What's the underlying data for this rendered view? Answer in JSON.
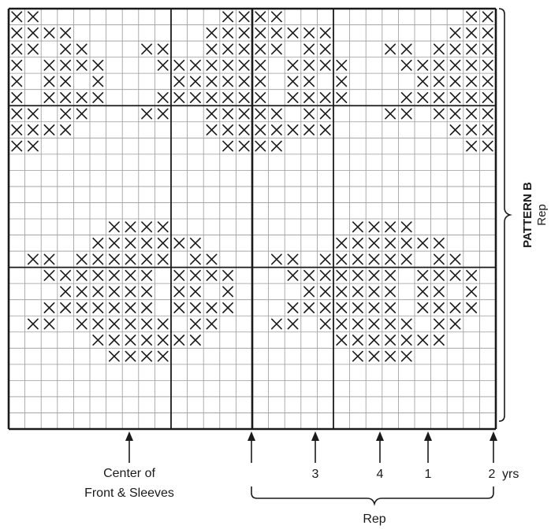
{
  "chart_data": {
    "type": "knitting-chart",
    "columns": 30,
    "rows": 26,
    "x_marks": [
      [
        0,
        1,
        2,
        3,
        4,
        5,
        6,
        7,
        8,
        9,
        10,
        11,
        12,
        13,
        14,
        15,
        16,
        17,
        18,
        19,
        20,
        21,
        22,
        23,
        24,
        25,
        26,
        27,
        28,
        29
      ],
      [
        0,
        1,
        2,
        3,
        4,
        5,
        6,
        7,
        8,
        9,
        10,
        11,
        12,
        13,
        14,
        15,
        16,
        17,
        18,
        19,
        20,
        21,
        22,
        23,
        24,
        25,
        26,
        27,
        28,
        29
      ]
    ],
    "grid_rows": [
      "XX.........XXXX.........XX",
      "XXXX......XXXXXXX......XXX",
      "XX.XX...XX.XXXXX.XX...XX.XXX",
      "X.XXXX....XXXXXX.XXXX...XXXXX",
      "X.XX.X....XXXXXX.XX.X...XXXXX",
      "X.XXXX...XXXXXXX.XXXX..XXXXXX",
      "XX.XX...XX.XXXXX.XX...XX.XXX",
      "XXXX......XXXXXXX......XXX",
      "XX.........XXXX.........XX"
    ],
    "pattern_rows": [
      "XX............XXXX............XX",
      "XXXX........XXXXXXXX........XXX",
      "XX.XX....XX..XXXXXX.XX....XX..XXX"
    ],
    "stitches": [
      [
        0,
        0
      ],
      [
        1,
        0
      ],
      [
        13,
        0
      ],
      [
        14,
        0
      ],
      [
        15,
        0
      ],
      [
        16,
        0
      ],
      [
        28,
        0
      ],
      [
        29,
        0
      ],
      [
        0,
        1
      ],
      [
        1,
        1
      ],
      [
        2,
        1
      ],
      [
        3,
        1
      ],
      [
        12,
        1
      ],
      [
        13,
        1
      ],
      [
        14,
        1
      ],
      [
        15,
        1
      ],
      [
        16,
        1
      ],
      [
        17,
        1
      ],
      [
        18,
        1
      ],
      [
        19,
        1
      ],
      [
        27,
        1
      ],
      [
        28,
        1
      ],
      [
        29,
        1
      ],
      [
        0,
        2
      ],
      [
        1,
        2
      ],
      [
        3,
        2
      ],
      [
        4,
        2
      ],
      [
        8,
        2
      ],
      [
        9,
        2
      ],
      [
        12,
        2
      ],
      [
        13,
        2
      ],
      [
        14,
        2
      ],
      [
        15,
        2
      ],
      [
        16,
        2
      ],
      [
        18,
        2
      ],
      [
        19,
        2
      ],
      [
        23,
        2
      ],
      [
        24,
        2
      ],
      [
        26,
        2
      ],
      [
        27,
        2
      ],
      [
        28,
        2
      ],
      [
        29,
        2
      ],
      [
        0,
        3
      ],
      [
        2,
        3
      ],
      [
        3,
        3
      ],
      [
        4,
        3
      ],
      [
        5,
        3
      ],
      [
        9,
        3
      ],
      [
        10,
        3
      ],
      [
        11,
        3
      ],
      [
        12,
        3
      ],
      [
        13,
        3
      ],
      [
        14,
        3
      ],
      [
        15,
        3
      ],
      [
        17,
        3
      ],
      [
        18,
        3
      ],
      [
        19,
        3
      ],
      [
        20,
        3
      ],
      [
        24,
        3
      ],
      [
        25,
        3
      ],
      [
        26,
        3
      ],
      [
        27,
        3
      ],
      [
        28,
        3
      ],
      [
        29,
        3
      ],
      [
        0,
        4
      ],
      [
        2,
        4
      ],
      [
        3,
        4
      ],
      [
        5,
        4
      ],
      [
        10,
        4
      ],
      [
        11,
        4
      ],
      [
        12,
        4
      ],
      [
        13,
        4
      ],
      [
        14,
        4
      ],
      [
        15,
        4
      ],
      [
        17,
        4
      ],
      [
        18,
        4
      ],
      [
        20,
        4
      ],
      [
        25,
        4
      ],
      [
        26,
        4
      ],
      [
        27,
        4
      ],
      [
        28,
        4
      ],
      [
        29,
        4
      ],
      [
        0,
        5
      ],
      [
        2,
        5
      ],
      [
        3,
        5
      ],
      [
        4,
        5
      ],
      [
        5,
        5
      ],
      [
        9,
        5
      ],
      [
        10,
        5
      ],
      [
        11,
        5
      ],
      [
        12,
        5
      ],
      [
        13,
        5
      ],
      [
        14,
        5
      ],
      [
        15,
        5
      ],
      [
        17,
        5
      ],
      [
        18,
        5
      ],
      [
        19,
        5
      ],
      [
        20,
        5
      ],
      [
        24,
        5
      ],
      [
        25,
        5
      ],
      [
        26,
        5
      ],
      [
        27,
        5
      ],
      [
        28,
        5
      ],
      [
        29,
        5
      ],
      [
        0,
        6
      ],
      [
        1,
        6
      ],
      [
        3,
        6
      ],
      [
        4,
        6
      ],
      [
        8,
        6
      ],
      [
        9,
        6
      ],
      [
        12,
        6
      ],
      [
        13,
        6
      ],
      [
        14,
        6
      ],
      [
        15,
        6
      ],
      [
        16,
        6
      ],
      [
        18,
        6
      ],
      [
        19,
        6
      ],
      [
        23,
        6
      ],
      [
        24,
        6
      ],
      [
        26,
        6
      ],
      [
        27,
        6
      ],
      [
        28,
        6
      ],
      [
        29,
        6
      ],
      [
        0,
        7
      ],
      [
        1,
        7
      ],
      [
        2,
        7
      ],
      [
        3,
        7
      ],
      [
        12,
        7
      ],
      [
        13,
        7
      ],
      [
        14,
        7
      ],
      [
        15,
        7
      ],
      [
        16,
        7
      ],
      [
        17,
        7
      ],
      [
        18,
        7
      ],
      [
        19,
        7
      ],
      [
        27,
        7
      ],
      [
        28,
        7
      ],
      [
        29,
        7
      ],
      [
        0,
        8
      ],
      [
        1,
        8
      ],
      [
        13,
        8
      ],
      [
        14,
        8
      ],
      [
        15,
        8
      ],
      [
        16,
        8
      ],
      [
        28,
        8
      ],
      [
        29,
        8
      ],
      [
        6,
        13
      ],
      [
        7,
        13
      ],
      [
        8,
        13
      ],
      [
        9,
        13
      ],
      [
        21,
        13
      ],
      [
        22,
        13
      ],
      [
        23,
        13
      ],
      [
        24,
        13
      ],
      [
        5,
        14
      ],
      [
        6,
        14
      ],
      [
        7,
        14
      ],
      [
        8,
        14
      ],
      [
        9,
        14
      ],
      [
        10,
        14
      ],
      [
        11,
        14
      ],
      [
        20,
        14
      ],
      [
        21,
        14
      ],
      [
        22,
        14
      ],
      [
        23,
        14
      ],
      [
        24,
        14
      ],
      [
        25,
        14
      ],
      [
        26,
        14
      ],
      [
        1,
        15
      ],
      [
        2,
        15
      ],
      [
        4,
        15
      ],
      [
        5,
        15
      ],
      [
        6,
        15
      ],
      [
        7,
        15
      ],
      [
        8,
        15
      ],
      [
        9,
        15
      ],
      [
        11,
        15
      ],
      [
        12,
        15
      ],
      [
        16,
        15
      ],
      [
        17,
        15
      ],
      [
        19,
        15
      ],
      [
        20,
        15
      ],
      [
        21,
        15
      ],
      [
        22,
        15
      ],
      [
        23,
        15
      ],
      [
        24,
        15
      ],
      [
        26,
        15
      ],
      [
        27,
        15
      ],
      [
        2,
        16
      ],
      [
        3,
        16
      ],
      [
        4,
        16
      ],
      [
        5,
        16
      ],
      [
        6,
        16
      ],
      [
        7,
        16
      ],
      [
        8,
        16
      ],
      [
        10,
        16
      ],
      [
        11,
        16
      ],
      [
        12,
        16
      ],
      [
        13,
        16
      ],
      [
        17,
        16
      ],
      [
        18,
        16
      ],
      [
        19,
        16
      ],
      [
        20,
        16
      ],
      [
        21,
        16
      ],
      [
        22,
        16
      ],
      [
        23,
        16
      ],
      [
        25,
        16
      ],
      [
        26,
        16
      ],
      [
        27,
        16
      ],
      [
        28,
        16
      ],
      [
        3,
        17
      ],
      [
        4,
        17
      ],
      [
        5,
        17
      ],
      [
        6,
        17
      ],
      [
        7,
        17
      ],
      [
        8,
        17
      ],
      [
        10,
        17
      ],
      [
        11,
        17
      ],
      [
        13,
        17
      ],
      [
        18,
        17
      ],
      [
        19,
        17
      ],
      [
        20,
        17
      ],
      [
        21,
        17
      ],
      [
        22,
        17
      ],
      [
        23,
        17
      ],
      [
        25,
        17
      ],
      [
        26,
        17
      ],
      [
        28,
        17
      ],
      [
        2,
        18
      ],
      [
        3,
        18
      ],
      [
        4,
        18
      ],
      [
        5,
        18
      ],
      [
        6,
        18
      ],
      [
        7,
        18
      ],
      [
        8,
        18
      ],
      [
        10,
        18
      ],
      [
        11,
        18
      ],
      [
        12,
        18
      ],
      [
        13,
        18
      ],
      [
        17,
        18
      ],
      [
        18,
        18
      ],
      [
        19,
        18
      ],
      [
        20,
        18
      ],
      [
        21,
        18
      ],
      [
        22,
        18
      ],
      [
        23,
        18
      ],
      [
        25,
        18
      ],
      [
        26,
        18
      ],
      [
        27,
        18
      ],
      [
        28,
        18
      ],
      [
        1,
        19
      ],
      [
        2,
        19
      ],
      [
        4,
        19
      ],
      [
        5,
        19
      ],
      [
        6,
        19
      ],
      [
        7,
        19
      ],
      [
        8,
        19
      ],
      [
        9,
        19
      ],
      [
        11,
        19
      ],
      [
        12,
        19
      ],
      [
        16,
        19
      ],
      [
        17,
        19
      ],
      [
        19,
        19
      ],
      [
        20,
        19
      ],
      [
        21,
        19
      ],
      [
        22,
        19
      ],
      [
        23,
        19
      ],
      [
        24,
        19
      ],
      [
        26,
        19
      ],
      [
        27,
        19
      ],
      [
        5,
        20
      ],
      [
        6,
        20
      ],
      [
        7,
        20
      ],
      [
        8,
        20
      ],
      [
        9,
        20
      ],
      [
        10,
        20
      ],
      [
        11,
        20
      ],
      [
        20,
        20
      ],
      [
        21,
        20
      ],
      [
        22,
        20
      ],
      [
        23,
        20
      ],
      [
        24,
        20
      ],
      [
        25,
        20
      ],
      [
        26,
        20
      ],
      [
        6,
        21
      ],
      [
        7,
        21
      ],
      [
        8,
        21
      ],
      [
        9,
        21
      ],
      [
        21,
        21
      ],
      [
        22,
        21
      ],
      [
        23,
        21
      ],
      [
        24,
        21
      ]
    ],
    "thick_cols": [
      0,
      10,
      15,
      20,
      30
    ],
    "thick_rows": [
      0,
      6,
      16,
      26
    ]
  },
  "labels": {
    "side_bold": "PATTERN B",
    "side_rep": "Rep",
    "center_line1": "Center of",
    "center_line2": "Front & Sleeves",
    "num3": "3",
    "num4": "4",
    "num1": "1",
    "num2": "2",
    "yrs": "yrs",
    "bottom_rep": "Rep"
  },
  "colors": {
    "ink": "#1a1a1a",
    "grid": "#9a9a9a",
    "paper": "#ffffff"
  }
}
